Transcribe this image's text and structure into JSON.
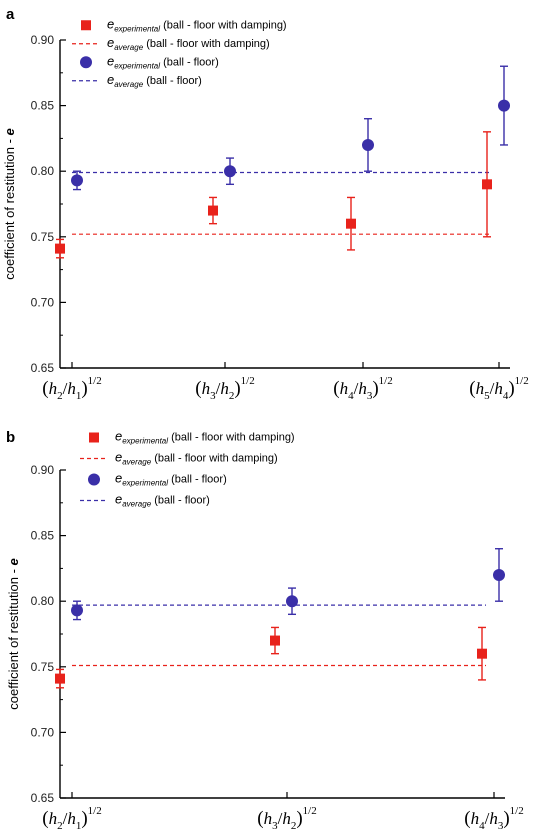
{
  "colors": {
    "damping": "#e8221b",
    "floor": "#3a2fa8",
    "axis": "#000000"
  },
  "legend_items": [
    {
      "sub": "experimental",
      "text": " (ball - floor with damping)",
      "marker": "square",
      "color": "#e8221b"
    },
    {
      "sub": "average",
      "text": " (ball - floor with damping)",
      "marker": "dash",
      "color": "#e8221b"
    },
    {
      "sub": "experimental",
      "text": " (ball - floor)",
      "marker": "circle",
      "color": "#3a2fa8"
    },
    {
      "sub": "average",
      "text": " (ball - floor)",
      "marker": "dash",
      "color": "#3a2fa8"
    }
  ],
  "chart_data": [
    {
      "panel": "a",
      "type": "scatter",
      "ylabel": "coefficient of restitution - e",
      "ylim": [
        0.65,
        0.9
      ],
      "yticks": [
        "0.65",
        "0.70",
        "0.75",
        "0.80",
        "0.85",
        "0.90"
      ],
      "categories": [
        {
          "a": "h2",
          "b": "h1"
        },
        {
          "a": "h3",
          "b": "h2"
        },
        {
          "a": "h4",
          "b": "h3"
        },
        {
          "a": "h5",
          "b": "h4"
        }
      ],
      "series": [
        {
          "name": "ball - floor with damping",
          "marker": "square",
          "values": [
            0.741,
            0.77,
            0.76,
            0.79
          ],
          "errors": [
            0.007,
            0.01,
            0.02,
            0.04
          ],
          "average": 0.752
        },
        {
          "name": "ball - floor",
          "marker": "circle",
          "values": [
            0.793,
            0.8,
            0.82,
            0.85
          ],
          "errors": [
            0.007,
            0.01,
            0.02,
            0.03
          ],
          "average": 0.799
        }
      ],
      "legend": "top-left"
    },
    {
      "panel": "b",
      "type": "scatter",
      "ylabel": "coefficient of restitution - e",
      "ylim": [
        0.65,
        0.9
      ],
      "yticks": [
        "0.65",
        "0.70",
        "0.75",
        "0.80",
        "0.85",
        "0.90"
      ],
      "categories": [
        {
          "a": "h2",
          "b": "h1"
        },
        {
          "a": "h3",
          "b": "h2"
        },
        {
          "a": "h4",
          "b": "h3"
        }
      ],
      "series": [
        {
          "name": "ball - floor with damping",
          "marker": "square",
          "values": [
            0.741,
            0.77,
            0.76
          ],
          "errors": [
            0.007,
            0.01,
            0.02
          ],
          "average": 0.751
        },
        {
          "name": "ball - floor",
          "marker": "circle",
          "values": [
            0.793,
            0.8,
            0.82
          ],
          "errors": [
            0.007,
            0.01,
            0.02
          ],
          "average": 0.797
        }
      ],
      "legend": "top-center"
    }
  ]
}
